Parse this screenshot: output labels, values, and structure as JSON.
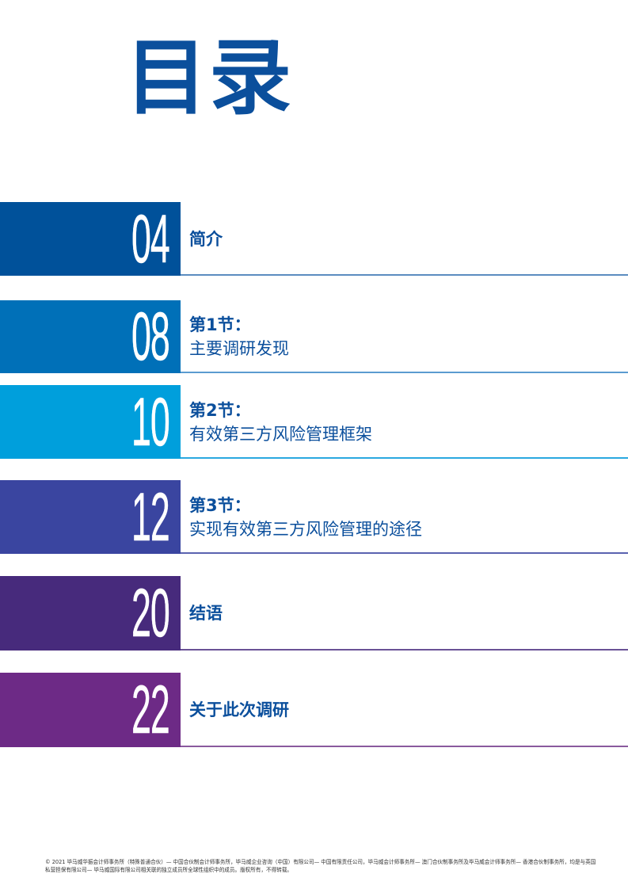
{
  "title": "目录",
  "colors": {
    "text": "#0b4f9c"
  },
  "entries": [
    {
      "page": "04",
      "section": "",
      "name": "简介",
      "color": "#00519a",
      "rule": "#5b8cc0"
    },
    {
      "page": "08",
      "section": "第1节：",
      "name": "主要调研发现",
      "color": "#0070b8",
      "rule": "#5b9bd0"
    },
    {
      "page": "10",
      "section": "第2节：",
      "name": "有效第三方风险管理框架",
      "color": "#009fdc",
      "rule": "#2aa8e0"
    },
    {
      "page": "12",
      "section": "第3节：",
      "name": "实现有效第三方风险管理的途径",
      "color": "#3a45a0",
      "rule": "#5a62b0"
    },
    {
      "page": "20",
      "section": "",
      "name": "结语",
      "color": "#472a7c",
      "rule": "#6a5296"
    },
    {
      "page": "22",
      "section": "",
      "name": "关于此次调研",
      "color": "#6d2a86",
      "rule": "#8a5a9e"
    }
  ],
  "footer": "© 2021 毕马威华振会计师事务所（特殊普通合伙）— 中国合伙制会计师事务所，毕马威企业咨询（中国）有限公司— 中国有限责任公司，毕马威会计师事务所— 澳门合伙制事务所及毕马威会计师事务所— 香港合伙制事务所，均是与英国私营担保有限公司— 毕马威国际有限公司相关联的独立成员所全球性组织中的成员。版权所有，不得转载。"
}
